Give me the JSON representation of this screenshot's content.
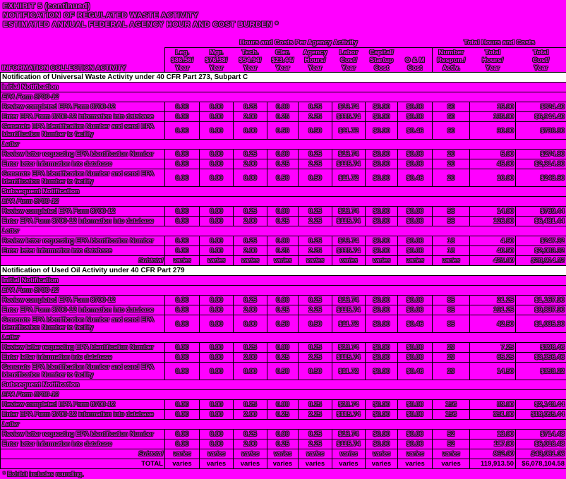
{
  "page": {
    "background_color": "#ff00ff",
    "section_row_color": "#ffffff",
    "border_color": "#000000",
    "title_lines": [
      "EXHIBIT 5 (continued)",
      "NOTIFICATION OF REGULATED WASTE ACTIVITY",
      "ESTIMATED ANNUAL FEDERAL AGENCY HOUR AND COST BURDEN *"
    ],
    "footnote": "* Exhibit includes rounding."
  },
  "table": {
    "corner_header": "INFORMATION COLLECTION ACTIVITY",
    "group_headers": [
      {
        "label": "Hours and Costs Per Agency Activity",
        "span": 8
      },
      {
        "label": "Total Hours and Costs",
        "span": 3
      }
    ],
    "columns": [
      {
        "lines": [
          "Leg.",
          "$86.56/",
          "Year"
        ]
      },
      {
        "lines": [
          "Mgr.",
          "$76.38/",
          "Year"
        ]
      },
      {
        "lines": [
          "Tech.",
          "$54.94/",
          "Year"
        ]
      },
      {
        "lines": [
          "Cler.",
          "$23.44/",
          "Year"
        ]
      },
      {
        "lines": [
          "Agency",
          "Hours/",
          "Year"
        ]
      },
      {
        "lines": [
          "Labor",
          "Cost/",
          "Year"
        ]
      },
      {
        "lines": [
          "Capital/",
          "Startup",
          "Cost"
        ]
      },
      {
        "lines": [
          "",
          "O & M",
          "Cost"
        ]
      },
      {
        "lines": [
          "Number",
          "Respon./",
          "Activ."
        ]
      },
      {
        "lines": [
          "Total",
          "Hours/",
          "Year"
        ]
      },
      {
        "lines": [
          "Total",
          "Cost/",
          "Year"
        ]
      }
    ],
    "rows": [
      {
        "type": "section",
        "label": "Notification of Universal Waste Activity under 40 CFR Part 273, Subpart C"
      },
      {
        "type": "subsection",
        "label": "Initial Notification"
      },
      {
        "type": "group",
        "label": "EPA Form 8700-12"
      },
      {
        "type": "data",
        "label": "Review completed EPA Form 8700-12",
        "cells": [
          "0.00",
          "0.00",
          "0.25",
          "0.00",
          "0.25",
          "$13.74",
          "$0.00",
          "$0.00",
          "60",
          "15.00",
          "$824.40"
        ]
      },
      {
        "type": "data",
        "label": "Enter EPA Form 8700-12 information into database",
        "cells": [
          "0.00",
          "0.00",
          "2.00",
          "0.25",
          "2.25",
          "$115.74",
          "$0.00",
          "$0.00",
          "60",
          "135.00",
          "$6,944.40"
        ]
      },
      {
        "type": "data",
        "label": "Generate EPA Identification Number and send EPA Identification Number to facility",
        "cells": [
          "0.00",
          "0.00",
          "0.00",
          "0.50",
          "0.50",
          "$11.72",
          "$0.00",
          "$0.46",
          "60",
          "30.00",
          "$730.80"
        ]
      },
      {
        "type": "group",
        "label": "Letter"
      },
      {
        "type": "data",
        "label": "Review letter requesting EPA Identification Number",
        "cells": [
          "0.00",
          "0.00",
          "0.25",
          "0.00",
          "0.25",
          "$13.74",
          "$0.00",
          "$0.00",
          "20",
          "5.00",
          "$274.80"
        ]
      },
      {
        "type": "data",
        "label": "Enter letter information into database",
        "cells": [
          "0.00",
          "0.00",
          "2.00",
          "0.25",
          "2.25",
          "$115.74",
          "$0.00",
          "$0.00",
          "20",
          "45.00",
          "$2,314.80"
        ]
      },
      {
        "type": "data",
        "label": "Generate EPA Identification Number and send EPA Identification Number to facility",
        "cells": [
          "0.00",
          "0.00",
          "0.00",
          "0.50",
          "0.50",
          "$11.72",
          "$0.00",
          "$0.46",
          "20",
          "10.00",
          "$243.60"
        ]
      },
      {
        "type": "subsection",
        "label": "Subsequent Notification"
      },
      {
        "type": "group",
        "label": "EPA Form 8700-12"
      },
      {
        "type": "data",
        "label": "Review completed EPA Form 8700-12",
        "cells": [
          "0.00",
          "0.00",
          "0.25",
          "0.00",
          "0.25",
          "$13.74",
          "$0.00",
          "$0.00",
          "56",
          "14.00",
          "$769.44"
        ]
      },
      {
        "type": "data",
        "label": "Enter EPA Form 8700-12 information into database",
        "cells": [
          "0.00",
          "0.00",
          "2.00",
          "0.25",
          "2.25",
          "$115.74",
          "$0.00",
          "$0.00",
          "56",
          "126.00",
          "$6,481.44"
        ]
      },
      {
        "type": "group",
        "label": "Letter"
      },
      {
        "type": "data",
        "label": "Review letter requesting EPA Identification Number",
        "cells": [
          "0.00",
          "0.00",
          "0.25",
          "0.00",
          "0.25",
          "$13.74",
          "$0.00",
          "$0.00",
          "18",
          "4.50",
          "$247.32"
        ]
      },
      {
        "type": "data",
        "label": "Enter letter information into database",
        "cells": [
          "0.00",
          "0.00",
          "2.00",
          "0.25",
          "2.25",
          "$115.74",
          "$0.00",
          "$0.00",
          "18",
          "40.50",
          "$2,083.32"
        ]
      },
      {
        "type": "subtotal",
        "label": "Subtotal",
        "cells": [
          "varies",
          "varies",
          "varies",
          "varies",
          "varies",
          "varies",
          "varies",
          "varies",
          "varies",
          "425.00",
          "$20,914.32"
        ]
      },
      {
        "type": "section",
        "label": "Notification of Used Oil Activity under 40 CFR Part 279"
      },
      {
        "type": "subsection",
        "label": "Initial Notification"
      },
      {
        "type": "group",
        "label": "EPA Form 8700-12"
      },
      {
        "type": "data",
        "label": "Review completed EPA Form 8700-12",
        "cells": [
          "0.00",
          "0.00",
          "0.25",
          "0.00",
          "0.25",
          "$13.74",
          "$0.00",
          "$0.00",
          "85",
          "21.25",
          "$1,167.90"
        ]
      },
      {
        "type": "data",
        "label": "Enter EPA Form 8700-12 information into database",
        "cells": [
          "0.00",
          "0.00",
          "2.00",
          "0.25",
          "2.25",
          "$115.74",
          "$0.00",
          "$0.00",
          "85",
          "191.25",
          "$9,837.90"
        ]
      },
      {
        "type": "data",
        "label": "Generate EPA Identification Number and send EPA Identification Number to facility",
        "cells": [
          "0.00",
          "0.00",
          "0.00",
          "0.50",
          "0.50",
          "$11.72",
          "$0.00",
          "$0.46",
          "85",
          "42.50",
          "$1,035.30"
        ]
      },
      {
        "type": "group",
        "label": "Letter"
      },
      {
        "type": "data",
        "label": "Review letter requesting EPA Identification Number",
        "cells": [
          "0.00",
          "0.00",
          "0.25",
          "0.00",
          "0.25",
          "$13.74",
          "$0.00",
          "$0.00",
          "29",
          "7.25",
          "$398.46"
        ]
      },
      {
        "type": "data",
        "label": "Enter letter information into database",
        "cells": [
          "0.00",
          "0.00",
          "2.00",
          "0.25",
          "2.25",
          "$115.74",
          "$0.00",
          "$0.00",
          "29",
          "65.25",
          "$3,356.46"
        ]
      },
      {
        "type": "data",
        "label": "Generate EPA Identification Number and send EPA Identification Number to facility",
        "cells": [
          "0.00",
          "0.00",
          "0.00",
          "0.50",
          "0.50",
          "$11.72",
          "$0.00",
          "$0.46",
          "29",
          "14.50",
          "$353.22"
        ]
      },
      {
        "type": "subsection",
        "label": "Subsequent Notification"
      },
      {
        "type": "group",
        "label": "EPA Form 8700-12"
      },
      {
        "type": "data",
        "label": "Review completed EPA Form 8700-12",
        "cells": [
          "0.00",
          "0.00",
          "0.25",
          "0.00",
          "0.25",
          "$13.74",
          "$0.00",
          "$0.00",
          "156",
          "39.00",
          "$2,143.44"
        ]
      },
      {
        "type": "data",
        "label": "Enter EPA Form 8700-12 information into database",
        "cells": [
          "0.00",
          "0.00",
          "2.00",
          "0.25",
          "2.25",
          "$115.74",
          "$0.00",
          "$0.00",
          "156",
          "351.00",
          "$18,055.44"
        ]
      },
      {
        "type": "group",
        "label": "Letter"
      },
      {
        "type": "data",
        "label": "Review letter requesting EPA Identification Number",
        "cells": [
          "0.00",
          "0.00",
          "0.25",
          "0.00",
          "0.25",
          "$13.74",
          "$0.00",
          "$0.00",
          "52",
          "13.00",
          "$714.48"
        ]
      },
      {
        "type": "data",
        "label": "Enter letter information into database",
        "cells": [
          "0.00",
          "0.00",
          "2.00",
          "0.25",
          "2.25",
          "$115.74",
          "$0.00",
          "$0.00",
          "52",
          "117.00",
          "$6,018.48"
        ]
      },
      {
        "type": "subtotal",
        "label": "Subtotal",
        "cells": [
          "varies",
          "varies",
          "varies",
          "varies",
          "varies",
          "varies",
          "varies",
          "varies",
          "varies",
          "862.00",
          "$43,081.08"
        ]
      },
      {
        "type": "total",
        "label": "TOTAL",
        "cells": [
          "varies",
          "varies",
          "varies",
          "varies",
          "varies",
          "varies",
          "varies",
          "varies",
          "varies",
          "119,913.50",
          "$6,078,104.58"
        ]
      }
    ]
  }
}
